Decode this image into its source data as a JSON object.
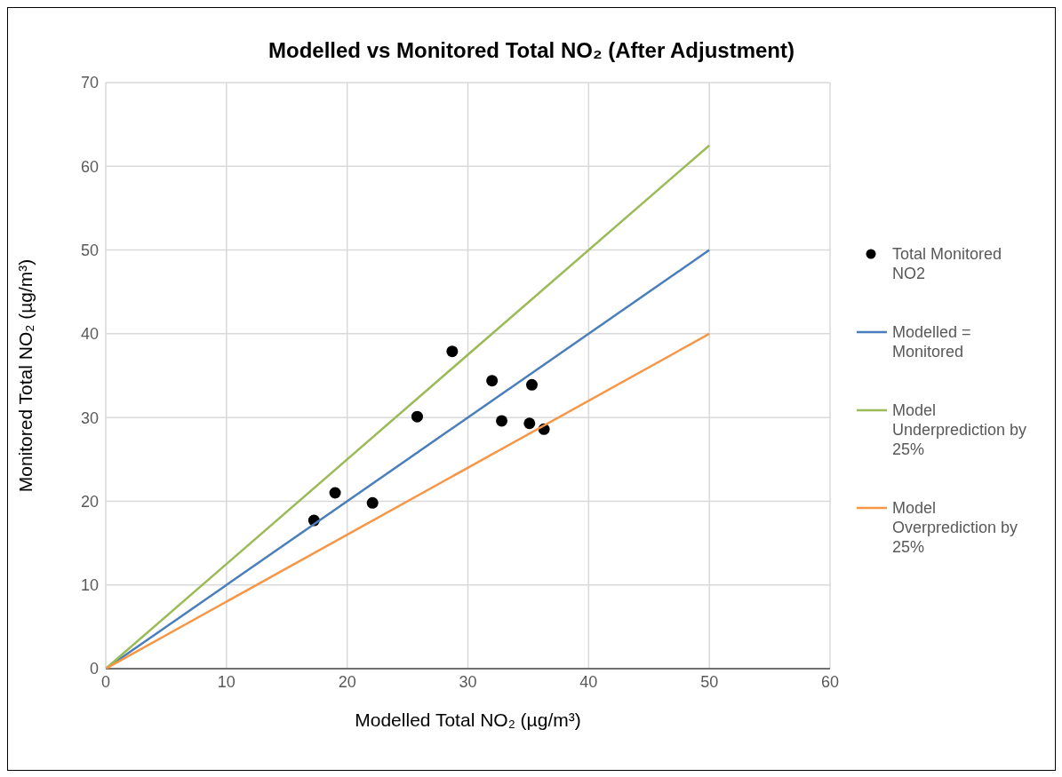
{
  "chart_data": {
    "type": "scatter",
    "title": "Modelled vs Monitored Total NO₂ (After Adjustment)",
    "xlabel": "Modelled Total NO₂ (µg/m³)",
    "ylabel": "Monitored Total NO₂ (µg/m³)",
    "xlim": [
      0,
      60
    ],
    "xticks": [
      0,
      10,
      20,
      30,
      40,
      50,
      60
    ],
    "ylim": [
      0,
      70
    ],
    "yticks": [
      0,
      10,
      20,
      30,
      40,
      50,
      60,
      70
    ],
    "grid": true,
    "legend": "right",
    "series": [
      {
        "name": "Total Monitored NO2",
        "marker": "circle",
        "color": "#000000",
        "x": [
          17.25,
          19.0,
          22.1,
          25.8,
          28.7,
          32.0,
          32.8,
          35.3,
          35.1,
          36.3
        ],
        "values": [
          17.7,
          21.0,
          19.8,
          30.1,
          37.9,
          34.4,
          29.6,
          33.9,
          29.3,
          28.6
        ]
      },
      {
        "name": "Modelled = Monitored",
        "type": "line",
        "marker": "none",
        "color": "#4a7ebb",
        "x": [
          0,
          50
        ],
        "values": [
          0,
          50
        ]
      },
      {
        "name": "Model Underprediction by 25%",
        "type": "line",
        "marker": "none",
        "color": "#9bbb59",
        "x": [
          0,
          50
        ],
        "values": [
          0,
          62.5
        ]
      },
      {
        "name": "Model Overprediction by 25%",
        "type": "line",
        "marker": "none",
        "color": "#f79646",
        "x": [
          0,
          50
        ],
        "values": [
          0,
          40
        ]
      }
    ]
  }
}
